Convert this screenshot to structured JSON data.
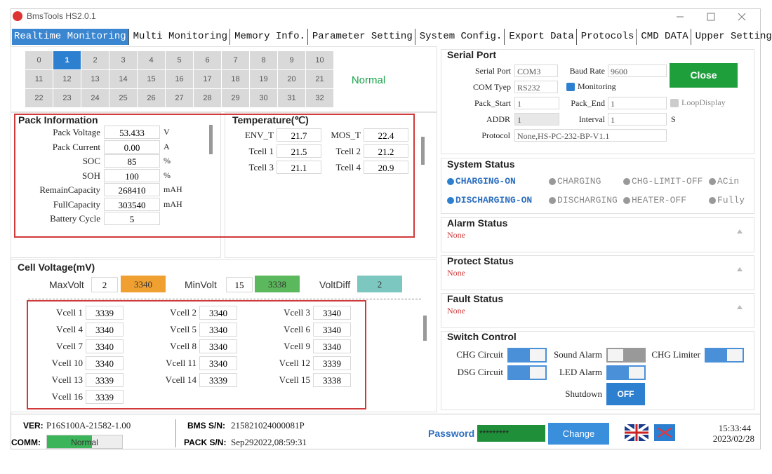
{
  "window": {
    "title": "BmsTools HS2.0.1"
  },
  "tabs": [
    "Realtime Monitoring",
    "Multi Monitoring",
    "Memory Info.",
    "Parameter Setting",
    "System Config.",
    "Export Data",
    "Protocols",
    "CMD DATA",
    "Upper Setting"
  ],
  "active_tab": 0,
  "pack_selector": {
    "ids": [
      "0",
      "1",
      "2",
      "3",
      "4",
      "5",
      "6",
      "7",
      "8",
      "9",
      "10",
      "11",
      "12",
      "13",
      "14",
      "15",
      "16",
      "17",
      "18",
      "19",
      "20",
      "21",
      "22",
      "23",
      "24",
      "25",
      "26",
      "27",
      "28",
      "29",
      "30",
      "31",
      "32"
    ],
    "selected_index": 1,
    "status": "Normal"
  },
  "pack_info": {
    "title": "Pack Information",
    "rows": [
      {
        "label": "Pack Voltage",
        "value": "53.433",
        "unit": "V"
      },
      {
        "label": "Pack Current",
        "value": "0.00",
        "unit": "A"
      },
      {
        "label": "SOC",
        "value": "85",
        "unit": "%"
      },
      {
        "label": "SOH",
        "value": "100",
        "unit": "%"
      },
      {
        "label": "RemainCapacity",
        "value": "268410",
        "unit": "mAH"
      },
      {
        "label": "FullCapacity",
        "value": "303540",
        "unit": "mAH"
      },
      {
        "label": "Battery Cycle",
        "value": "5"
      }
    ]
  },
  "temperature": {
    "title": "Temperature(℃)",
    "rows": [
      {
        "label": "ENV_T",
        "value": "21.7"
      },
      {
        "label": "MOS_T",
        "value": "22.4"
      },
      {
        "label": "Tcell 1",
        "value": "21.5"
      },
      {
        "label": "Tcell 2",
        "value": "21.2"
      },
      {
        "label": "Tcell 3",
        "value": "21.1"
      },
      {
        "label": "Tcell 4",
        "value": "20.9"
      }
    ]
  },
  "cell_voltage": {
    "title": "Cell Voltage(mV)",
    "max_label": "MaxVolt",
    "max_cell": "2",
    "max_value": "3340",
    "min_label": "MinVolt",
    "min_cell": "15",
    "min_value": "3338",
    "diff_label": "VoltDiff",
    "diff_value": "2",
    "cells": [
      {
        "label": "Vcell 1",
        "value": "3339"
      },
      {
        "label": "Vcell 2",
        "value": "3340"
      },
      {
        "label": "Vcell 3",
        "value": "3340"
      },
      {
        "label": "Vcell 4",
        "value": "3340"
      },
      {
        "label": "Vcell 5",
        "value": "3340"
      },
      {
        "label": "Vcell 6",
        "value": "3340"
      },
      {
        "label": "Vcell 7",
        "value": "3340"
      },
      {
        "label": "Vcell 8",
        "value": "3340"
      },
      {
        "label": "Vcell 9",
        "value": "3340"
      },
      {
        "label": "Vcell 10",
        "value": "3340"
      },
      {
        "label": "Vcell 11",
        "value": "3340"
      },
      {
        "label": "Vcell 12",
        "value": "3339"
      },
      {
        "label": "Vcell 13",
        "value": "3339"
      },
      {
        "label": "Vcell 14",
        "value": "3339"
      },
      {
        "label": "Vcell 15",
        "value": "3338"
      },
      {
        "label": "Vcell 16",
        "value": "3339"
      }
    ]
  },
  "serial_port": {
    "title": "Serial Port",
    "port_label": "Serial Port",
    "port": "COM3",
    "baud_label": "Baud Rate",
    "baud": "9600",
    "close_button": "Close",
    "type_label": "COM Tyep",
    "type": "RS232",
    "monitoring": "Monitoring",
    "start_label": "Pack_Start",
    "start": "1",
    "end_label": "Pack_End",
    "end": "1",
    "loop": "LoopDisplay",
    "addr_label": "ADDR",
    "addr": "1",
    "interval_label": "Interval",
    "interval": "1",
    "interval_unit": "S",
    "protocol_label": "Protocol",
    "protocol": "None,HS-PC-232-BP-V1.1"
  },
  "system_status": {
    "title": "System Status",
    "items": [
      {
        "label": "CHARGING-ON",
        "active": true
      },
      {
        "label": "CHARGING",
        "active": false
      },
      {
        "label": "CHG-LIMIT-OFF",
        "active": false
      },
      {
        "label": "ACin",
        "active": false
      },
      {
        "label": "DISCHARGING-ON",
        "active": true
      },
      {
        "label": "DISCHARGING",
        "active": false
      },
      {
        "label": "HEATER-OFF",
        "active": false
      },
      {
        "label": "Fully",
        "active": false
      }
    ]
  },
  "alarm_status": {
    "title": "Alarm Status",
    "value": "None"
  },
  "protect_status": {
    "title": "Protect Status",
    "value": "None"
  },
  "fault_status": {
    "title": "Fault Status",
    "value": "None"
  },
  "switch_control": {
    "title": "Switch Control",
    "switches": [
      {
        "label": "CHG Circuit",
        "on": true
      },
      {
        "label": "Sound Alarm",
        "on": false
      },
      {
        "label": "CHG Limiter",
        "on": true
      },
      {
        "label": "DSG Circuit",
        "on": true
      },
      {
        "label": "LED Alarm",
        "on": true
      }
    ],
    "shutdown_label": "Shutdown",
    "shutdown_button": "OFF"
  },
  "footer": {
    "ver_label": "VER:",
    "ver": "P16S100A-21582-1.00",
    "comm_label": "COMM:",
    "comm": "Normal",
    "bms_sn_label": "BMS S/N:",
    "bms_sn": "215821024000081P",
    "pack_sn_label": "PACK S/N:",
    "pack_sn": "Sep292022,08:59:31",
    "password_label": "Password",
    "password": "*********",
    "change_button": "Change",
    "time": "15:33:44",
    "date": "2023/02/28"
  }
}
